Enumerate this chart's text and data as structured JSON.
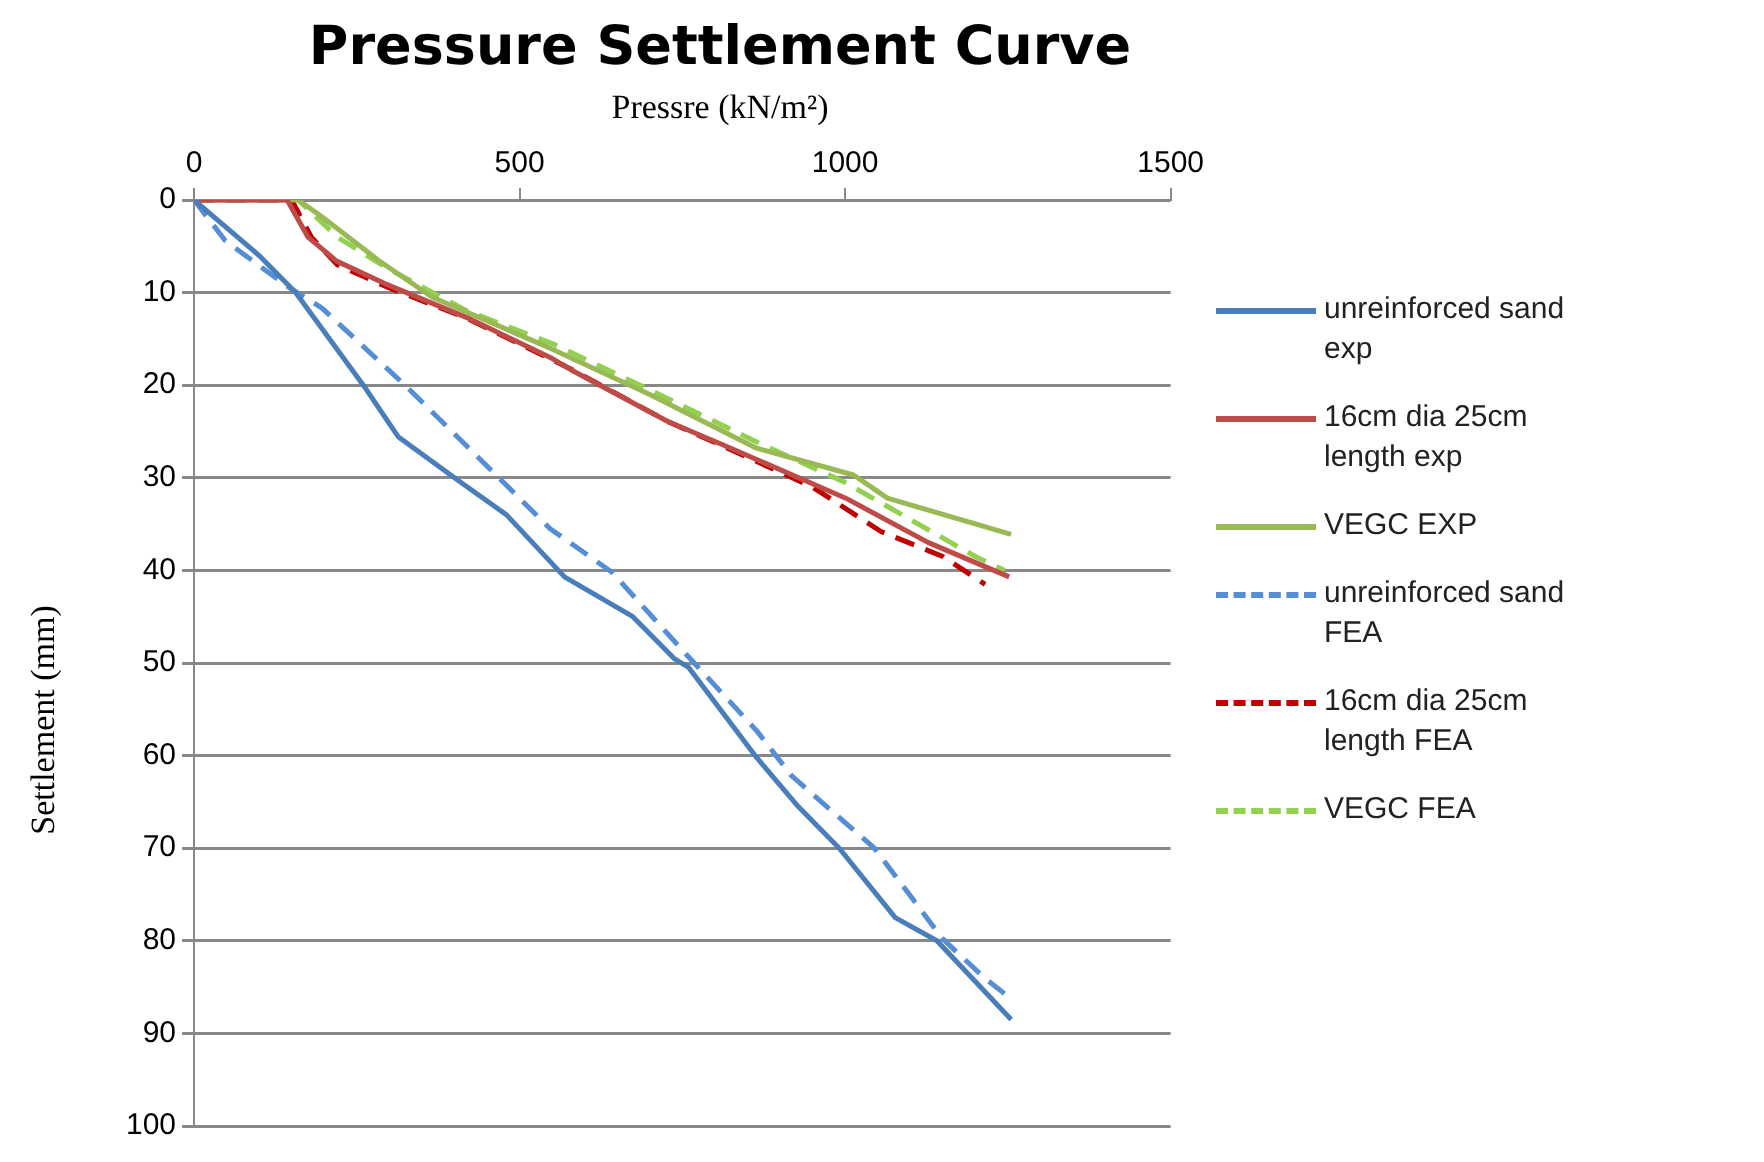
{
  "chart_data": {
    "type": "line",
    "title": "Pressure Settlement Curve",
    "xlabel": "Pressre (kN/m²)",
    "ylabel": "Settlement (mm)",
    "xlim": [
      0,
      1500
    ],
    "xticks": [
      0,
      500,
      1000,
      1500
    ],
    "ylim": [
      100,
      0
    ],
    "yticks": [
      0,
      10,
      20,
      30,
      40,
      50,
      60,
      70,
      80,
      90,
      100
    ],
    "grid": "y",
    "legend": "right",
    "marker": "none",
    "series": [
      {
        "name": "unreinforced sand exp",
        "color": "#4a7ebb",
        "line_style": "solid",
        "x": [
          0,
          100,
          156,
          260,
          314,
          410,
          480,
          569,
          674,
          737,
          760,
          864,
          928,
          991,
          1077,
          1141,
          1255
        ],
        "values": [
          0,
          6,
          10,
          20,
          25.6,
          30.5,
          34,
          40.7,
          45,
          49.5,
          50.5,
          60.2,
          65.5,
          70,
          77.5,
          80,
          88.5
        ]
      },
      {
        "name": "16cm dia 25cm length exp",
        "color": "#be4b48",
        "line_style": "solid",
        "x": [
          0,
          143,
          175,
          219,
          292,
          419,
          547,
          578,
          727,
          811,
          1001,
          1128,
          1252
        ],
        "values": [
          0,
          0,
          4,
          6.6,
          9,
          12.7,
          17,
          18.3,
          23.9,
          26.4,
          32.2,
          37,
          40.7
        ]
      },
      {
        "name": "VEGC EXP",
        "color": "#98b954",
        "line_style": "solid",
        "x": [
          0,
          160,
          200,
          283,
          366,
          547,
          700,
          864,
          1013,
          1065,
          1255
        ],
        "values": [
          0,
          0,
          2,
          6.5,
          10.5,
          16,
          21,
          26.8,
          29.7,
          32.2,
          36.1
        ]
      },
      {
        "name": "unreinforced sand FEA",
        "color": "#558ed5",
        "line_style": "dashed",
        "x": [
          0,
          48,
          143,
          197,
          324,
          451,
          547,
          642,
          759,
          864,
          918,
          1045,
          1150,
          1214,
          1250
        ],
        "values": [
          0,
          4.4,
          9.3,
          11.7,
          20,
          28.8,
          35.5,
          40.2,
          49.3,
          57.3,
          62.2,
          70,
          79.8,
          84,
          86
        ]
      },
      {
        "name": "16cm dia 25cm length FEA",
        "color": "#c00000",
        "line_style": "dashed",
        "x": [
          0,
          150,
          180,
          220,
          300,
          420,
          580,
          730,
          810,
          950,
          1055,
          1150,
          1215
        ],
        "values": [
          0,
          0,
          4,
          7,
          9.5,
          12.8,
          18.3,
          24,
          26.5,
          31,
          35.8,
          38.5,
          41.5
        ]
      },
      {
        "name": "VEGC FEA",
        "color": "#92d050",
        "line_style": "dashed",
        "x": [
          0,
          160,
          220,
          300,
          420,
          550,
          700,
          860,
          1000,
          1100,
          1200,
          1245
        ],
        "values": [
          0,
          0,
          4,
          7.5,
          12,
          15.5,
          20.5,
          26,
          30.5,
          34.5,
          38.5,
          40
        ]
      }
    ]
  }
}
